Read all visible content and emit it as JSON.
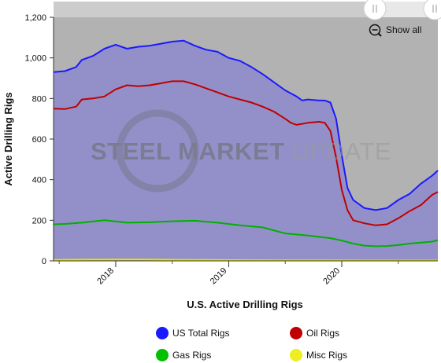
{
  "chart_data": {
    "type": "line",
    "xlabel": "U.S. Active Drilling Rigs",
    "ylabel": "Active Drilling Rigs",
    "ylim": [
      0,
      1200
    ],
    "y_ticks": [
      "0",
      "200",
      "400",
      "600",
      "800",
      "1,000",
      "1,200"
    ],
    "x_ticks": [
      {
        "label": "2018",
        "year": 2018.0
      },
      {
        "label": "2019",
        "year": 2019.0
      },
      {
        "label": "2020",
        "year": 2020.0
      }
    ],
    "xlim": [
      2017.45,
      2020.85
    ],
    "grid": false,
    "legend_position": "bottom",
    "watermark": {
      "bold": "STEEL MARKET ",
      "light": "UPDATE"
    },
    "zoom_button_label": "Show all",
    "zoom_icon": "zoom-out-icon",
    "series": [
      {
        "name": "US Total Rigs",
        "color": "#1a1aff",
        "marker_color": "#1a1aff",
        "points": [
          [
            2017.45,
            930
          ],
          [
            2017.55,
            935
          ],
          [
            2017.65,
            955
          ],
          [
            2017.7,
            990
          ],
          [
            2017.8,
            1010
          ],
          [
            2017.9,
            1045
          ],
          [
            2018.0,
            1065
          ],
          [
            2018.1,
            1045
          ],
          [
            2018.2,
            1055
          ],
          [
            2018.3,
            1060
          ],
          [
            2018.4,
            1070
          ],
          [
            2018.5,
            1080
          ],
          [
            2018.6,
            1085
          ],
          [
            2018.7,
            1060
          ],
          [
            2018.8,
            1040
          ],
          [
            2018.9,
            1030
          ],
          [
            2019.0,
            1000
          ],
          [
            2019.1,
            985
          ],
          [
            2019.2,
            955
          ],
          [
            2019.3,
            920
          ],
          [
            2019.4,
            880
          ],
          [
            2019.5,
            840
          ],
          [
            2019.6,
            810
          ],
          [
            2019.65,
            790
          ],
          [
            2019.7,
            795
          ],
          [
            2019.8,
            790
          ],
          [
            2019.85,
            790
          ],
          [
            2019.9,
            780
          ],
          [
            2019.95,
            700
          ],
          [
            2020.0,
            520
          ],
          [
            2020.05,
            360
          ],
          [
            2020.1,
            300
          ],
          [
            2020.2,
            260
          ],
          [
            2020.3,
            250
          ],
          [
            2020.4,
            260
          ],
          [
            2020.5,
            300
          ],
          [
            2020.6,
            330
          ],
          [
            2020.7,
            380
          ],
          [
            2020.8,
            420
          ],
          [
            2020.85,
            445
          ]
        ]
      },
      {
        "name": "Oil Rigs",
        "color": "#c00000",
        "marker_color": "#c00000",
        "points": [
          [
            2017.45,
            750
          ],
          [
            2017.55,
            748
          ],
          [
            2017.65,
            760
          ],
          [
            2017.7,
            795
          ],
          [
            2017.8,
            800
          ],
          [
            2017.9,
            810
          ],
          [
            2018.0,
            845
          ],
          [
            2018.1,
            865
          ],
          [
            2018.2,
            860
          ],
          [
            2018.3,
            865
          ],
          [
            2018.4,
            875
          ],
          [
            2018.5,
            885
          ],
          [
            2018.6,
            885
          ],
          [
            2018.7,
            870
          ],
          [
            2018.8,
            850
          ],
          [
            2018.9,
            830
          ],
          [
            2019.0,
            810
          ],
          [
            2019.1,
            795
          ],
          [
            2019.2,
            780
          ],
          [
            2019.3,
            760
          ],
          [
            2019.4,
            735
          ],
          [
            2019.5,
            700
          ],
          [
            2019.55,
            680
          ],
          [
            2019.6,
            670
          ],
          [
            2019.7,
            680
          ],
          [
            2019.8,
            685
          ],
          [
            2019.85,
            680
          ],
          [
            2019.9,
            640
          ],
          [
            2019.95,
            510
          ],
          [
            2020.0,
            350
          ],
          [
            2020.05,
            250
          ],
          [
            2020.1,
            200
          ],
          [
            2020.2,
            185
          ],
          [
            2020.3,
            175
          ],
          [
            2020.4,
            180
          ],
          [
            2020.5,
            210
          ],
          [
            2020.6,
            245
          ],
          [
            2020.7,
            275
          ],
          [
            2020.8,
            325
          ],
          [
            2020.85,
            340
          ]
        ]
      },
      {
        "name": "Gas Rigs",
        "color": "#00b000",
        "marker_color": "#00c000",
        "points": [
          [
            2017.45,
            180
          ],
          [
            2017.55,
            182
          ],
          [
            2017.7,
            188
          ],
          [
            2017.9,
            200
          ],
          [
            2018.1,
            188
          ],
          [
            2018.3,
            190
          ],
          [
            2018.5,
            195
          ],
          [
            2018.7,
            198
          ],
          [
            2018.9,
            188
          ],
          [
            2019.1,
            175
          ],
          [
            2019.3,
            165
          ],
          [
            2019.5,
            135
          ],
          [
            2019.7,
            125
          ],
          [
            2019.9,
            112
          ],
          [
            2020.0,
            100
          ],
          [
            2020.1,
            85
          ],
          [
            2020.2,
            75
          ],
          [
            2020.3,
            72
          ],
          [
            2020.4,
            73
          ],
          [
            2020.5,
            78
          ],
          [
            2020.6,
            85
          ],
          [
            2020.7,
            90
          ],
          [
            2020.8,
            95
          ],
          [
            2020.85,
            102
          ]
        ]
      },
      {
        "name": "Misc Rigs",
        "color": "#e6e600",
        "marker_color": "#eeee22",
        "points": [
          [
            2017.45,
            5
          ],
          [
            2017.8,
            6
          ],
          [
            2018.2,
            7
          ],
          [
            2018.6,
            5
          ],
          [
            2019.0,
            4
          ],
          [
            2019.4,
            3
          ],
          [
            2019.8,
            3
          ],
          [
            2020.2,
            2
          ],
          [
            2020.6,
            2
          ],
          [
            2020.85,
            2
          ]
        ]
      }
    ]
  }
}
